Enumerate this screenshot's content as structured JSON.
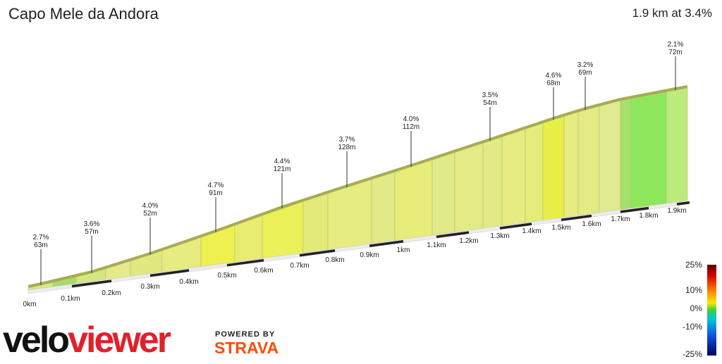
{
  "header": {
    "title": "Capo Mele da Andora",
    "summary": "1.9 km at 3.4%"
  },
  "distance_labels": [
    "0km",
    "0.1km",
    "0.2km",
    "0.3km",
    "0.4km",
    "0.5km",
    "0.6km",
    "0.7km",
    "0.8km",
    "0.9km",
    "1km",
    "1.1km",
    "1.2km",
    "1.3km",
    "1.4km",
    "1.5km",
    "1.6km",
    "1.7km",
    "1.8km",
    "1.9km"
  ],
  "segments": [
    {
      "grade": "2.7%",
      "length": "63m"
    },
    {
      "grade": "3.6%",
      "length": "57m"
    },
    {
      "grade": "4.0%",
      "length": "52m"
    },
    {
      "grade": "4.7%",
      "length": "91m"
    },
    {
      "grade": "4.4%",
      "length": "121m"
    },
    {
      "grade": "3.7%",
      "length": "128m"
    },
    {
      "grade": "4.0%",
      "length": "112m"
    },
    {
      "grade": "3.5%",
      "length": "54m"
    },
    {
      "grade": "4.6%",
      "length": "68m"
    },
    {
      "grade": "3.2%",
      "length": "69m"
    },
    {
      "grade": "2.1%",
      "length": "72m"
    }
  ],
  "legend": [
    "25%",
    "10%",
    "0%",
    "-10%",
    "-25%"
  ],
  "logo": {
    "left": "velo",
    "right": "viewer",
    "powered": "POWERED BY",
    "brand": "STRAVA"
  }
}
